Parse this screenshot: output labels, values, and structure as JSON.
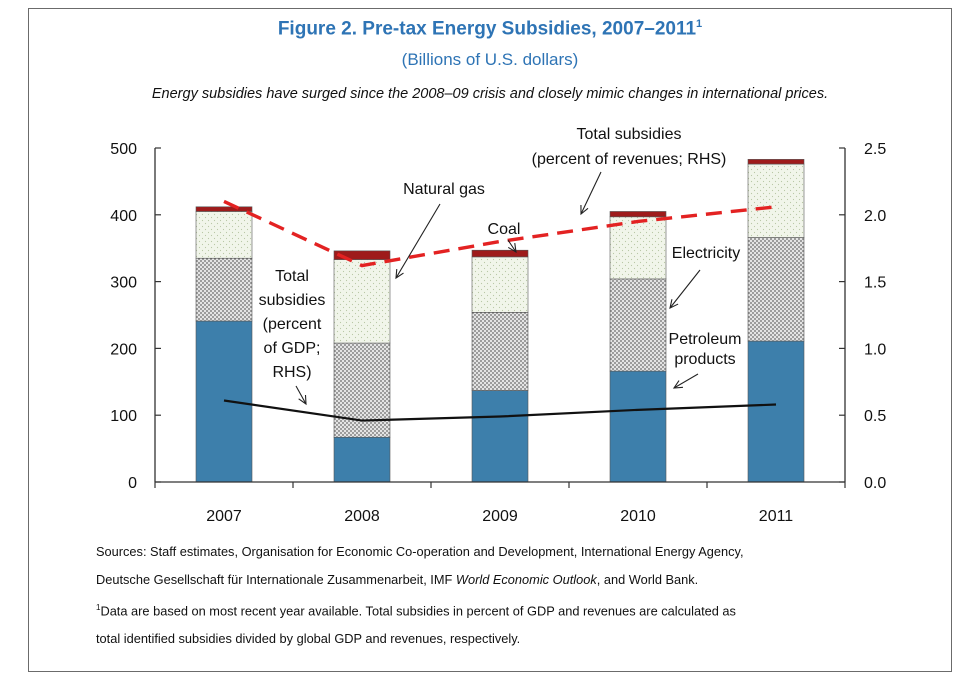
{
  "figure": {
    "title": "Figure 2. Pre-tax Energy Subsidies, 2007–2011",
    "title_sup": "1",
    "subtitle": "(Billions of U.S. dollars)",
    "headline": "Energy subsidies have surged since the 2008–09 crisis and closely mimic changes in international prices."
  },
  "chart_data": {
    "type": "bar",
    "stacked": true,
    "categories": [
      "2007",
      "2008",
      "2009",
      "2010",
      "2011"
    ],
    "series": [
      {
        "name": "Petroleum products",
        "values": [
          241,
          67,
          137,
          166,
          211
        ],
        "color": "#3d7fab"
      },
      {
        "name": "Electricity",
        "values": [
          94,
          141,
          117,
          138,
          155
        ],
        "color": "#c8c8c8"
      },
      {
        "name": "Natural gas",
        "values": [
          70,
          125,
          83,
          93,
          110
        ],
        "color": "#eef3e6"
      },
      {
        "name": "Coal",
        "values": [
          7,
          13,
          10,
          8,
          7
        ],
        "color": "#9e1b1b"
      }
    ],
    "lines": [
      {
        "name": "Total subsidies (percent of GDP; RHS)",
        "axis": "right",
        "style": "solid",
        "color": "#111111",
        "values": [
          0.61,
          0.46,
          0.49,
          0.54,
          0.58
        ]
      },
      {
        "name": "Total subsidies (percent of revenues; RHS)",
        "axis": "right",
        "style": "dashed",
        "color": "#e32222",
        "values": [
          2.1,
          1.62,
          1.8,
          1.95,
          2.06
        ]
      }
    ],
    "y_left": {
      "min": 0,
      "max": 500,
      "ticks": [
        "0",
        "100",
        "200",
        "300",
        "400",
        "500"
      ]
    },
    "y_right": {
      "min": 0,
      "max": 2.5,
      "ticks": [
        "0.0",
        "0.5",
        "1.0",
        "1.5",
        "2.0",
        "2.5"
      ]
    },
    "annotations": {
      "natural_gas": "Natural gas",
      "coal": "Coal",
      "electricity": "Electricity",
      "petroleum": [
        "Petroleum",
        "products"
      ],
      "gdp": [
        "Total",
        "subsidies",
        "(percent",
        "of GDP;",
        "RHS)"
      ],
      "revenues": [
        "Total subsidies",
        "(percent of revenues; RHS)"
      ]
    }
  },
  "notes": {
    "sources_1": "Sources: Staff estimates, Organisation for Economic Co-operation and Development, International Energy Agency,",
    "sources_2_pre": "Deutsche Gesellschaft für Internationale Zusammenarbeit, IMF ",
    "sources_2_em": "World Economic Outlook",
    "sources_2_post": ", and World Bank.",
    "footnote_mark": "1",
    "footnote_1": "Data are based on most recent year available. Total subsidies in percent of GDP and revenues are calculated as",
    "footnote_2": "total identified subsidies divided by global GDP and revenues, respectively."
  }
}
